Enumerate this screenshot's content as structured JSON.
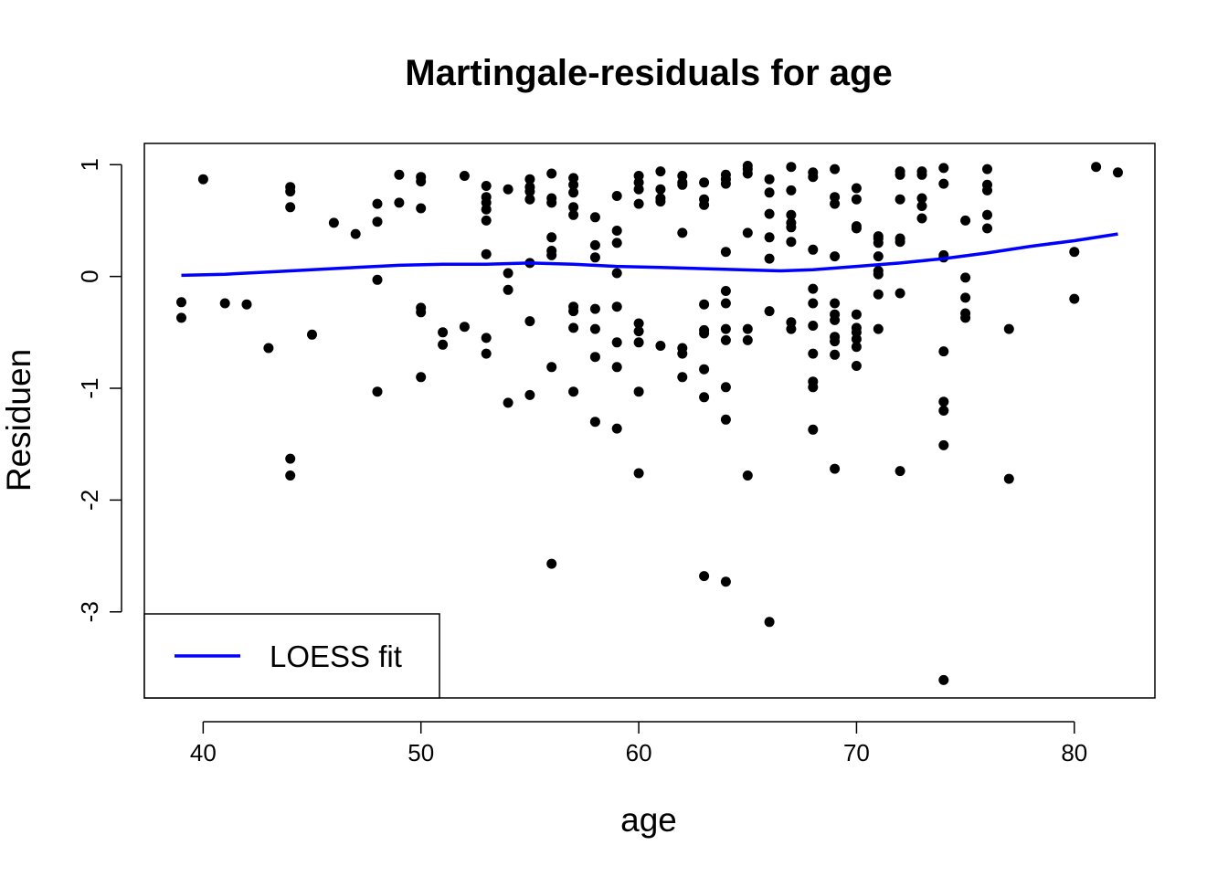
{
  "chart_data": {
    "type": "scatter",
    "title": "Martingale-residuals for age",
    "xlabel": "age",
    "ylabel": "Residuen",
    "xlim": [
      37.3,
      83.7
    ],
    "ylim": [
      -3.77,
      1.19
    ],
    "x_ticks": [
      40,
      50,
      60,
      70,
      80
    ],
    "y_ticks": [
      -3,
      -2,
      -1,
      0,
      1
    ],
    "grid": false,
    "legend_position": "bottom-left",
    "colors": {
      "points": "#000000",
      "loess": "#0000ff",
      "frame": "#000000"
    },
    "series": [
      {
        "kind": "points",
        "points": [
          [
            39,
            -0.23
          ],
          [
            39,
            -0.37
          ],
          [
            40,
            0.87
          ],
          [
            41,
            -0.24
          ],
          [
            42,
            -0.25
          ],
          [
            43,
            -0.64
          ],
          [
            44,
            0.8
          ],
          [
            44,
            0.76
          ],
          [
            44,
            0.62
          ],
          [
            44,
            -1.63
          ],
          [
            44,
            -1.78
          ],
          [
            45,
            -0.52
          ],
          [
            46,
            0.48
          ],
          [
            47,
            0.38
          ],
          [
            48,
            0.65
          ],
          [
            48,
            0.49
          ],
          [
            48,
            -0.03
          ],
          [
            48,
            -1.03
          ],
          [
            49,
            0.91
          ],
          [
            49,
            0.66
          ],
          [
            50,
            0.89
          ],
          [
            50,
            0.85
          ],
          [
            50,
            0.61
          ],
          [
            50,
            -0.28
          ],
          [
            50,
            -0.32
          ],
          [
            50,
            -0.9
          ],
          [
            51,
            -0.5
          ],
          [
            51,
            -0.61
          ],
          [
            52,
            0.9
          ],
          [
            52,
            -0.45
          ],
          [
            53,
            0.81
          ],
          [
            53,
            0.71
          ],
          [
            53,
            0.66
          ],
          [
            53,
            0.6
          ],
          [
            53,
            0.5
          ],
          [
            53,
            0.2
          ],
          [
            53,
            -0.55
          ],
          [
            53,
            -0.69
          ],
          [
            54,
            0.78
          ],
          [
            54,
            0.03
          ],
          [
            54,
            -0.12
          ],
          [
            54,
            -1.13
          ],
          [
            55,
            0.87
          ],
          [
            55,
            0.8
          ],
          [
            55,
            0.76
          ],
          [
            55,
            0.69
          ],
          [
            55,
            0.12
          ],
          [
            55,
            -0.4
          ],
          [
            55,
            -1.06
          ],
          [
            56,
            0.92
          ],
          [
            56,
            0.7
          ],
          [
            56,
            0.66
          ],
          [
            56,
            0.35
          ],
          [
            56,
            0.23
          ],
          [
            56,
            0.19
          ],
          [
            56,
            -0.81
          ],
          [
            56,
            -2.57
          ],
          [
            57,
            0.88
          ],
          [
            57,
            0.82
          ],
          [
            57,
            0.75
          ],
          [
            57,
            0.62
          ],
          [
            57,
            0.55
          ],
          [
            57,
            -0.27
          ],
          [
            57,
            -0.31
          ],
          [
            57,
            -0.46
          ],
          [
            57,
            -1.03
          ],
          [
            58,
            0.53
          ],
          [
            58,
            0.28
          ],
          [
            58,
            0.17
          ],
          [
            58,
            -0.29
          ],
          [
            58,
            -0.47
          ],
          [
            58,
            -0.72
          ],
          [
            58,
            -1.3
          ],
          [
            59,
            0.72
          ],
          [
            59,
            0.41
          ],
          [
            59,
            0.3
          ],
          [
            59,
            0.03
          ],
          [
            59,
            -0.27
          ],
          [
            59,
            -0.59
          ],
          [
            59,
            -0.81
          ],
          [
            59,
            -1.36
          ],
          [
            60,
            0.9
          ],
          [
            60,
            0.84
          ],
          [
            60,
            0.78
          ],
          [
            60,
            0.65
          ],
          [
            60,
            -0.42
          ],
          [
            60,
            -0.49
          ],
          [
            60,
            -0.59
          ],
          [
            60,
            -1.03
          ],
          [
            60,
            -1.76
          ],
          [
            61,
            0.94
          ],
          [
            61,
            0.78
          ],
          [
            61,
            0.7
          ],
          [
            61,
            0.67
          ],
          [
            61,
            -0.62
          ],
          [
            62,
            0.9
          ],
          [
            62,
            0.84
          ],
          [
            62,
            0.82
          ],
          [
            62,
            0.39
          ],
          [
            62,
            -0.64
          ],
          [
            62,
            -0.69
          ],
          [
            62,
            -0.9
          ],
          [
            63,
            0.84
          ],
          [
            63,
            0.69
          ],
          [
            63,
            0.64
          ],
          [
            63,
            -0.25
          ],
          [
            63,
            -0.48
          ],
          [
            63,
            -0.51
          ],
          [
            63,
            -0.83
          ],
          [
            63,
            -1.08
          ],
          [
            63,
            -2.68
          ],
          [
            64,
            0.91
          ],
          [
            64,
            0.87
          ],
          [
            64,
            0.83
          ],
          [
            64,
            0.22
          ],
          [
            64,
            -0.13
          ],
          [
            64,
            -0.24
          ],
          [
            64,
            -0.47
          ],
          [
            64,
            -0.57
          ],
          [
            64,
            -0.99
          ],
          [
            64,
            -1.28
          ],
          [
            64,
            -2.73
          ],
          [
            65,
            0.99
          ],
          [
            65,
            0.96
          ],
          [
            65,
            0.92
          ],
          [
            65,
            0.39
          ],
          [
            65,
            -0.47
          ],
          [
            65,
            -0.57
          ],
          [
            65,
            -1.78
          ],
          [
            66,
            0.87
          ],
          [
            66,
            0.75
          ],
          [
            66,
            0.56
          ],
          [
            66,
            0.35
          ],
          [
            66,
            0.16
          ],
          [
            66,
            -0.31
          ],
          [
            66,
            -3.09
          ],
          [
            67,
            0.98
          ],
          [
            67,
            0.77
          ],
          [
            67,
            0.55
          ],
          [
            67,
            0.48
          ],
          [
            67,
            0.44
          ],
          [
            67,
            0.31
          ],
          [
            67,
            -0.41
          ],
          [
            67,
            -0.47
          ],
          [
            68,
            0.93
          ],
          [
            68,
            0.89
          ],
          [
            68,
            0.24
          ],
          [
            68,
            -0.11
          ],
          [
            68,
            -0.24
          ],
          [
            68,
            -0.44
          ],
          [
            68,
            -0.69
          ],
          [
            68,
            -0.94
          ],
          [
            68,
            -0.99
          ],
          [
            68,
            -1.37
          ],
          [
            69,
            0.96
          ],
          [
            69,
            0.71
          ],
          [
            69,
            0.65
          ],
          [
            69,
            0.18
          ],
          [
            69,
            -0.24
          ],
          [
            69,
            -0.34
          ],
          [
            69,
            -0.39
          ],
          [
            69,
            -0.54
          ],
          [
            69,
            -0.58
          ],
          [
            69,
            -0.7
          ],
          [
            69,
            -1.72
          ],
          [
            70,
            0.79
          ],
          [
            70,
            0.69
          ],
          [
            70,
            0.45
          ],
          [
            70,
            0.43
          ],
          [
            70,
            -0.34
          ],
          [
            70,
            -0.46
          ],
          [
            70,
            -0.5
          ],
          [
            70,
            -0.56
          ],
          [
            70,
            -0.63
          ],
          [
            70,
            -0.8
          ],
          [
            71,
            0.36
          ],
          [
            71,
            0.34
          ],
          [
            71,
            0.3
          ],
          [
            71,
            0.18
          ],
          [
            71,
            0.05
          ],
          [
            71,
            0.02
          ],
          [
            71,
            -0.16
          ],
          [
            71,
            -0.47
          ],
          [
            72,
            0.94
          ],
          [
            72,
            0.91
          ],
          [
            72,
            0.69
          ],
          [
            72,
            0.34
          ],
          [
            72,
            0.31
          ],
          [
            72,
            -0.15
          ],
          [
            72,
            -1.74
          ],
          [
            73,
            0.94
          ],
          [
            73,
            0.91
          ],
          [
            73,
            0.7
          ],
          [
            73,
            0.63
          ],
          [
            73,
            0.52
          ],
          [
            74,
            0.97
          ],
          [
            74,
            0.83
          ],
          [
            74,
            0.19
          ],
          [
            74,
            0.17
          ],
          [
            74,
            -0.67
          ],
          [
            74,
            -1.12
          ],
          [
            74,
            -1.2
          ],
          [
            74,
            -1.51
          ],
          [
            74,
            -3.61
          ],
          [
            75,
            0.5
          ],
          [
            75,
            -0.01
          ],
          [
            75,
            -0.19
          ],
          [
            75,
            -0.33
          ],
          [
            75,
            -0.37
          ],
          [
            76,
            0.96
          ],
          [
            76,
            0.82
          ],
          [
            76,
            0.77
          ],
          [
            76,
            0.55
          ],
          [
            76,
            0.43
          ],
          [
            77,
            -0.47
          ],
          [
            77,
            -1.81
          ],
          [
            80,
            0.22
          ],
          [
            80,
            -0.2
          ],
          [
            81,
            0.98
          ],
          [
            82,
            0.93
          ]
        ]
      },
      {
        "kind": "line",
        "name": "LOESS fit",
        "points": [
          [
            39,
            0.01
          ],
          [
            41,
            0.02
          ],
          [
            43,
            0.04
          ],
          [
            45,
            0.06
          ],
          [
            47,
            0.08
          ],
          [
            49,
            0.1
          ],
          [
            51,
            0.11
          ],
          [
            53,
            0.11
          ],
          [
            55,
            0.12
          ],
          [
            57,
            0.11
          ],
          [
            59,
            0.09
          ],
          [
            61,
            0.08
          ],
          [
            63,
            0.07
          ],
          [
            66.5,
            0.05
          ],
          [
            68,
            0.06
          ],
          [
            70,
            0.09
          ],
          [
            72,
            0.12
          ],
          [
            74,
            0.16
          ],
          [
            76,
            0.21
          ],
          [
            78,
            0.27
          ],
          [
            80,
            0.32
          ],
          [
            82,
            0.38
          ]
        ]
      }
    ]
  }
}
